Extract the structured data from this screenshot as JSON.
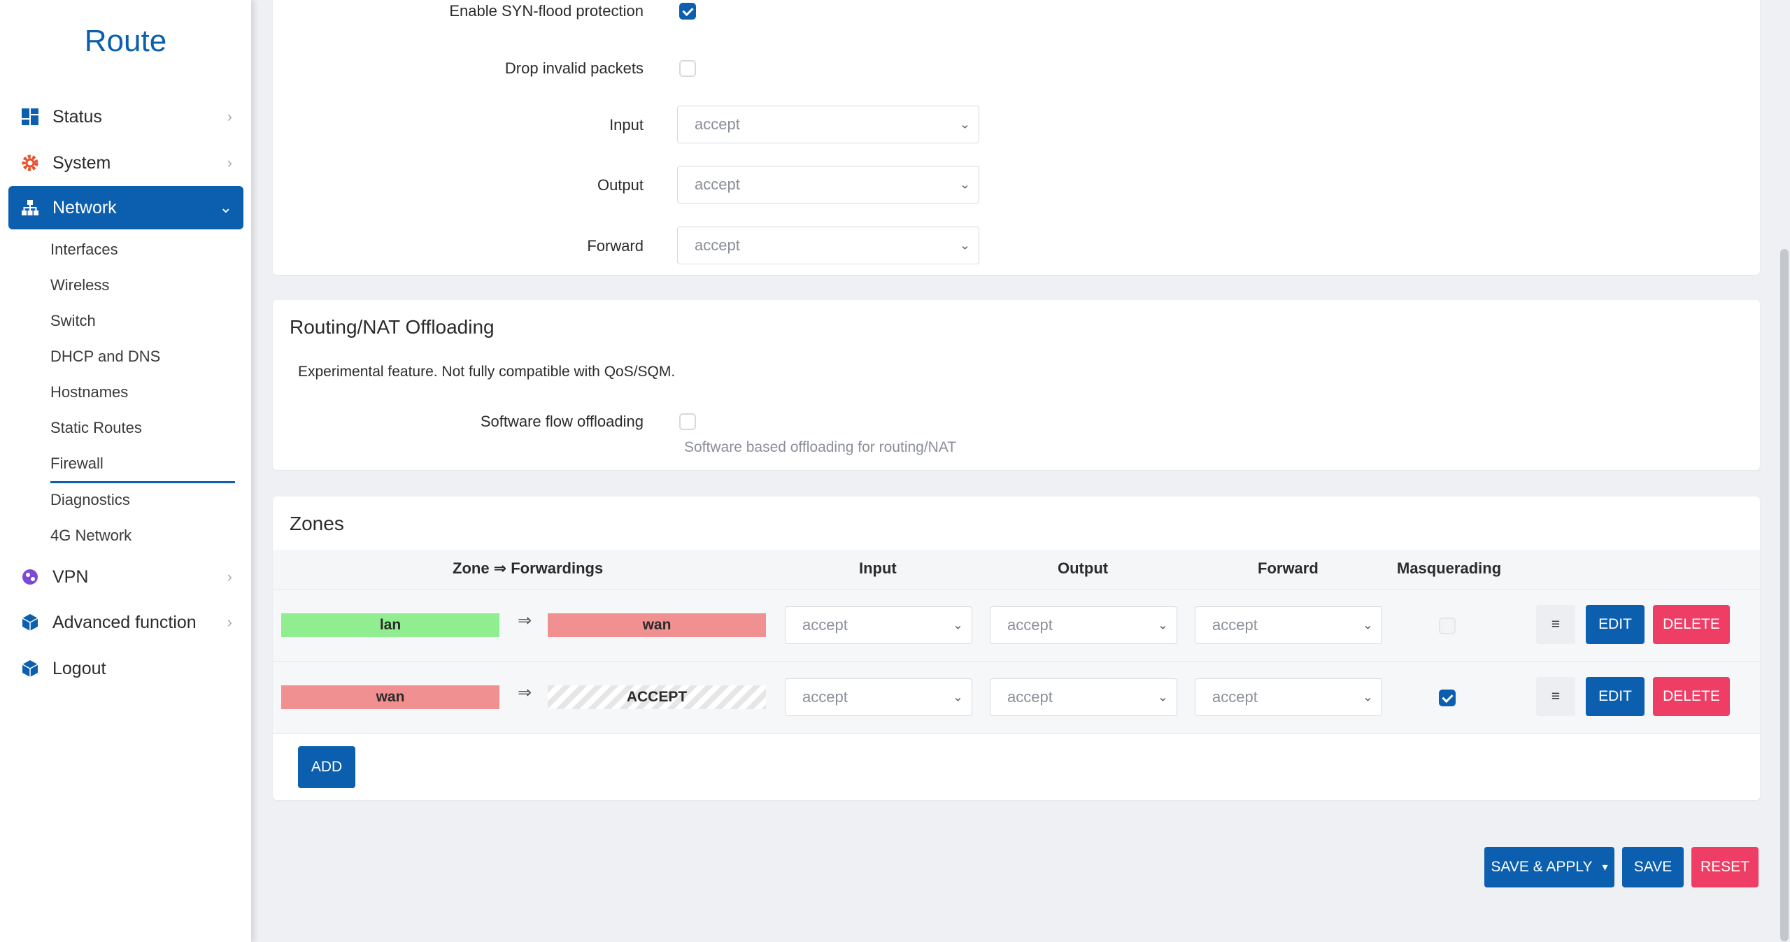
{
  "brand": "Route",
  "nav": {
    "status": "Status",
    "system": "System",
    "network": "Network",
    "vpn": "VPN",
    "advanced": "Advanced function",
    "logout": "Logout",
    "network_items": [
      "Interfaces",
      "Wireless",
      "Switch",
      "DHCP and DNS",
      "Hostnames",
      "Static Routes",
      "Firewall",
      "Diagnostics",
      "4G Network"
    ]
  },
  "general": {
    "syn_label": "Enable SYN-flood protection",
    "syn_checked": true,
    "drop_label": "Drop invalid packets",
    "drop_checked": false,
    "input_label": "Input",
    "input_value": "accept",
    "output_label": "Output",
    "output_value": "accept",
    "forward_label": "Forward",
    "forward_value": "accept"
  },
  "offload": {
    "title": "Routing/NAT Offloading",
    "note": "Experimental feature. Not fully compatible with QoS/SQM.",
    "flow_label": "Software flow offloading",
    "flow_checked": false,
    "flow_hint": "Software based offloading for routing/NAT"
  },
  "zones": {
    "title": "Zones",
    "headers": {
      "zone": "Zone ⇒ Forwardings",
      "input": "Input",
      "output": "Output",
      "forward": "Forward",
      "masq": "Masquerading"
    },
    "rows": [
      {
        "zone": "lan",
        "zone_color": "#90ee90",
        "arrow": "⇒",
        "target": "wan",
        "target_color": "#f09090",
        "input": "accept",
        "output": "accept",
        "forward": "accept",
        "masq": false
      },
      {
        "zone": "wan",
        "zone_color": "#f09090",
        "arrow": "⇒",
        "target": "ACCEPT",
        "target_color": "striped",
        "input": "accept",
        "output": "accept",
        "forward": "accept",
        "masq": true
      }
    ],
    "menu_glyph": "≡",
    "edit_label": "EDIT",
    "delete_label": "DELETE",
    "add_label": "ADD"
  },
  "footer": {
    "save_apply": "SAVE & APPLY",
    "save_apply_caret": "▾",
    "save": "SAVE",
    "reset": "RESET"
  },
  "icons": {
    "status": "dashboard-icon",
    "system": "gear-icon",
    "network": "network-icon",
    "vpn": "vpn-icon",
    "advanced": "cube-icon",
    "logout": "cube-icon"
  },
  "colors": {
    "primary": "#0b5fae",
    "danger": "#ef3e66",
    "system_icon": "#e8532e",
    "vpn_icon": "#7b4bd6"
  }
}
